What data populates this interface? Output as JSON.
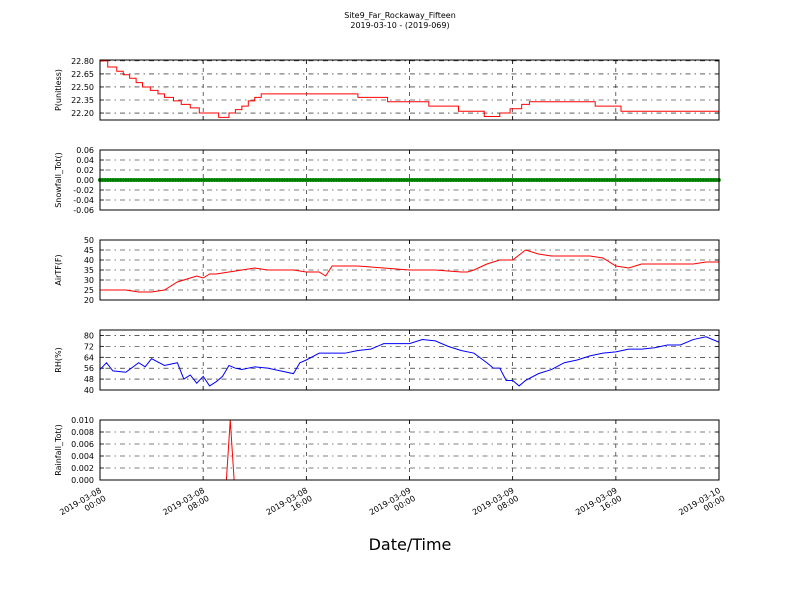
{
  "chart_data": {
    "type": "line",
    "title": [
      "Site9_Far_Rockaway_Fifteen",
      "2019-03-10 - (2019-069)"
    ],
    "xlabel": "Date/Time",
    "x_tick_labels": [
      [
        "2019-03-08",
        "00:00"
      ],
      [
        "2019-03-08",
        "08:00"
      ],
      [
        "2019-03-08",
        "16:00"
      ],
      [
        "2019-03-09",
        "00:00"
      ],
      [
        "2019-03-09",
        "08:00"
      ],
      [
        "2019-03-09",
        "16:00"
      ],
      [
        "2019-03-10",
        "00:00"
      ]
    ],
    "x_hours_range": [
      0,
      48
    ],
    "grid": true,
    "panels": [
      {
        "ylabel": "P(unitless)",
        "ylim": [
          22.12,
          22.81
        ],
        "yticks": [
          "22.80",
          "22.65",
          "22.50",
          "22.35",
          "22.20"
        ],
        "ytick_values": [
          22.8,
          22.65,
          22.5,
          22.35,
          22.2
        ],
        "color": "#ff0000",
        "style": "step",
        "series": {
          "x": [
            0,
            0.6,
            1.3,
            1.8,
            2.3,
            2.8,
            3.3,
            3.9,
            4.5,
            5,
            5.7,
            6.3,
            7,
            7.7,
            9.2,
            10,
            10.5,
            11,
            11.5,
            12,
            12.5,
            13.1,
            17.8,
            20,
            22.3,
            25.5,
            27.8,
            28.5,
            29.8,
            31,
            31.8,
            32.7,
            33.3,
            38.4,
            40.4,
            42,
            48
          ],
          "y": [
            22.8,
            22.73,
            22.68,
            22.64,
            22.6,
            22.55,
            22.5,
            22.46,
            22.42,
            22.38,
            22.34,
            22.3,
            22.26,
            22.2,
            22.15,
            22.2,
            22.24,
            22.28,
            22.34,
            22.38,
            22.42,
            22.42,
            22.42,
            22.38,
            22.33,
            22.28,
            22.22,
            22.22,
            22.16,
            22.2,
            22.25,
            22.3,
            22.33,
            22.28,
            22.22,
            22.22,
            22.22
          ]
        }
      },
      {
        "ylabel": "Snowfall_Tot()",
        "ylim": [
          -0.06,
          0.06
        ],
        "yticks": [
          "0.06",
          "0.04",
          "0.02",
          "0.00",
          "-0.02",
          "-0.04",
          "-0.06"
        ],
        "ytick_values": [
          0.06,
          0.04,
          0.02,
          0.0,
          -0.02,
          -0.04,
          -0.06
        ],
        "color": "#008000",
        "style": "markers",
        "series": {
          "x": [
            0,
            48
          ],
          "y": [
            0,
            0
          ]
        }
      },
      {
        "ylabel": "AirTF(F)",
        "ylim": [
          20,
          50
        ],
        "yticks": [
          "50",
          "45",
          "40",
          "35",
          "30",
          "25",
          "20"
        ],
        "ytick_values": [
          50,
          45,
          40,
          35,
          30,
          25,
          20
        ],
        "color": "#ff0000",
        "style": "line",
        "series": {
          "x": [
            0,
            1,
            2,
            3,
            4,
            5,
            6,
            7,
            7.5,
            8,
            8.5,
            9,
            10,
            11,
            12,
            13,
            14,
            15,
            16,
            17,
            17.5,
            18,
            19,
            20,
            22,
            24,
            26,
            28,
            28.5,
            29,
            30,
            31,
            32,
            33,
            34,
            35,
            36,
            37,
            38,
            39,
            40,
            41,
            42,
            43,
            44,
            45,
            46,
            47,
            48
          ],
          "y": [
            25,
            25,
            25,
            24,
            24,
            25,
            29,
            31,
            32,
            31,
            33,
            33,
            34,
            35,
            36,
            35,
            35,
            35,
            34,
            34,
            32,
            37,
            37,
            37,
            36,
            35,
            35,
            34,
            34,
            35,
            38,
            40,
            40,
            45,
            43,
            42,
            42,
            42,
            42,
            41,
            37,
            36,
            38,
            38,
            38,
            38,
            38,
            39,
            39
          ]
        }
      },
      {
        "ylabel": "RH(%)",
        "ylim": [
          40,
          84
        ],
        "yticks": [
          "80",
          "72",
          "64",
          "56",
          "48",
          "40"
        ],
        "ytick_values": [
          80,
          72,
          64,
          56,
          48,
          40
        ],
        "color": "#0000ff",
        "style": "line",
        "series": {
          "x": [
            0,
            0.5,
            1,
            2,
            3,
            3.5,
            4,
            5,
            6,
            6.5,
            7,
            7.5,
            8,
            8.5,
            9,
            9.5,
            10,
            10.5,
            11,
            12,
            13,
            14,
            15,
            15.5,
            16,
            17,
            18,
            19,
            20,
            21,
            22,
            23,
            24,
            25,
            26,
            27,
            28,
            29,
            30,
            30.5,
            31,
            31.5,
            32,
            32.5,
            33,
            34,
            35,
            36,
            37,
            38,
            39,
            40,
            41,
            42,
            43,
            44,
            45,
            46,
            47,
            48
          ],
          "y": [
            55,
            60,
            54,
            53,
            60,
            57,
            63,
            58,
            60,
            48,
            51,
            45,
            50,
            43,
            46,
            50,
            58,
            56,
            55,
            57,
            56,
            54,
            52,
            60,
            62,
            67,
            67,
            67,
            69,
            70,
            74,
            74,
            74,
            77,
            76,
            72,
            69,
            67,
            60,
            56,
            56,
            47,
            47,
            43,
            47,
            52,
            55,
            60,
            62,
            65,
            67,
            68,
            70,
            70,
            71,
            73,
            73,
            77,
            79,
            75
          ]
        }
      },
      {
        "ylabel": "Rainfall_Tot()",
        "ylim": [
          0,
          0.01
        ],
        "yticks": [
          "0.010",
          "0.008",
          "0.006",
          "0.004",
          "0.002",
          "0.000"
        ],
        "ytick_values": [
          0.01,
          0.008,
          0.006,
          0.004,
          0.002,
          0.0
        ],
        "color": "#ff0000",
        "style": "line",
        "series": {
          "x": [
            0,
            9.8,
            10.1,
            10.4,
            48
          ],
          "y": [
            0,
            0,
            0.01,
            0,
            0
          ]
        }
      }
    ]
  }
}
